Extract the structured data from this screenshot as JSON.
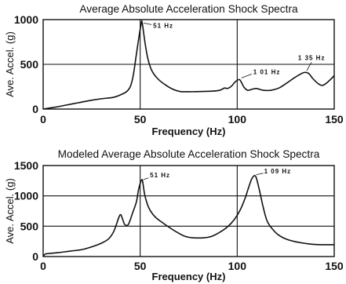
{
  "chart_data": [
    {
      "type": "line",
      "title": "Average Absolute Acceleration Shock Spectra",
      "xlabel": "Frequency (Hz)",
      "ylabel": "Ave. Accel. (g)",
      "xlim": [
        0,
        150
      ],
      "ylim": [
        0,
        1000
      ],
      "xticks": [
        0,
        50,
        100,
        150
      ],
      "yticks": [
        0,
        500,
        1000
      ],
      "grid": true,
      "series": [
        {
          "x": [
            0,
            6,
            12,
            18,
            24,
            30,
            36,
            40,
            43,
            45,
            46.5,
            48,
            49.5,
            50.5,
            51,
            52.5,
            54,
            56,
            59,
            63,
            67,
            71,
            79,
            87,
            91,
            93.5,
            95,
            97,
            99,
            101,
            102,
            103.5,
            105.5,
            109.5,
            113.5,
            117.5,
            121.5,
            125.5,
            129.5,
            133,
            135,
            137,
            139,
            142,
            144,
            146,
            148.5,
            150
          ],
          "y": [
            0,
            20,
            45,
            70,
            95,
            115,
            130,
            160,
            195,
            255,
            385,
            605,
            825,
            950,
            970,
            740,
            560,
            430,
            340,
            270,
            220,
            195,
            195,
            200,
            210,
            235,
            230,
            255,
            305,
            330,
            305,
            245,
            210,
            230,
            210,
            210,
            235,
            290,
            350,
            395,
            410,
            395,
            340,
            280,
            265,
            290,
            340,
            375
          ]
        }
      ],
      "annotations": [
        {
          "text": "51 Hz",
          "x": 51,
          "y": 970
        },
        {
          "text": "1 01 Hz",
          "x": 101,
          "y": 330
        },
        {
          "text": "1 35 Hz",
          "x": 135,
          "y": 410
        }
      ]
    },
    {
      "type": "line",
      "title": "Modeled Average Absolute Acceleration Shock Spectra",
      "xlabel": "Frequency (Hz)",
      "ylabel": "Ave. Accel. (g)",
      "xlim": [
        0,
        150
      ],
      "ylim": [
        0,
        1500
      ],
      "xticks": [
        0,
        50,
        100,
        150
      ],
      "yticks": [
        0,
        500,
        1000,
        1500
      ],
      "grid": true,
      "series": [
        {
          "x": [
            0,
            1,
            3,
            8,
            14,
            20,
            26,
            30,
            33.5,
            36,
            37.5,
            39,
            40,
            41,
            42,
            43.5,
            44.5,
            46,
            48,
            49,
            50,
            51,
            51.5,
            52.5,
            54.5,
            57.5,
            61,
            65,
            69,
            73,
            77,
            83,
            87,
            91,
            95,
            98.5,
            101.5,
            104,
            106,
            107.5,
            109,
            110,
            111.5,
            113.5,
            115.5,
            118.5,
            121.5,
            125.5,
            131.5,
            138,
            144,
            150
          ],
          "y": [
            0,
            40,
            50,
            65,
            90,
            115,
            170,
            220,
            285,
            390,
            505,
            645,
            690,
            610,
            530,
            515,
            570,
            710,
            895,
            1075,
            1205,
            1270,
            1190,
            995,
            800,
            660,
            570,
            480,
            400,
            335,
            310,
            310,
            335,
            400,
            490,
            610,
            765,
            955,
            1150,
            1280,
            1335,
            1280,
            1085,
            800,
            580,
            440,
            350,
            285,
            235,
            205,
            195,
            195
          ]
        }
      ],
      "annotations": [
        {
          "text": "51 Hz",
          "x": 51,
          "y": 1270
        },
        {
          "text": "1 09 Hz",
          "x": 109,
          "y": 1335
        }
      ]
    }
  ]
}
